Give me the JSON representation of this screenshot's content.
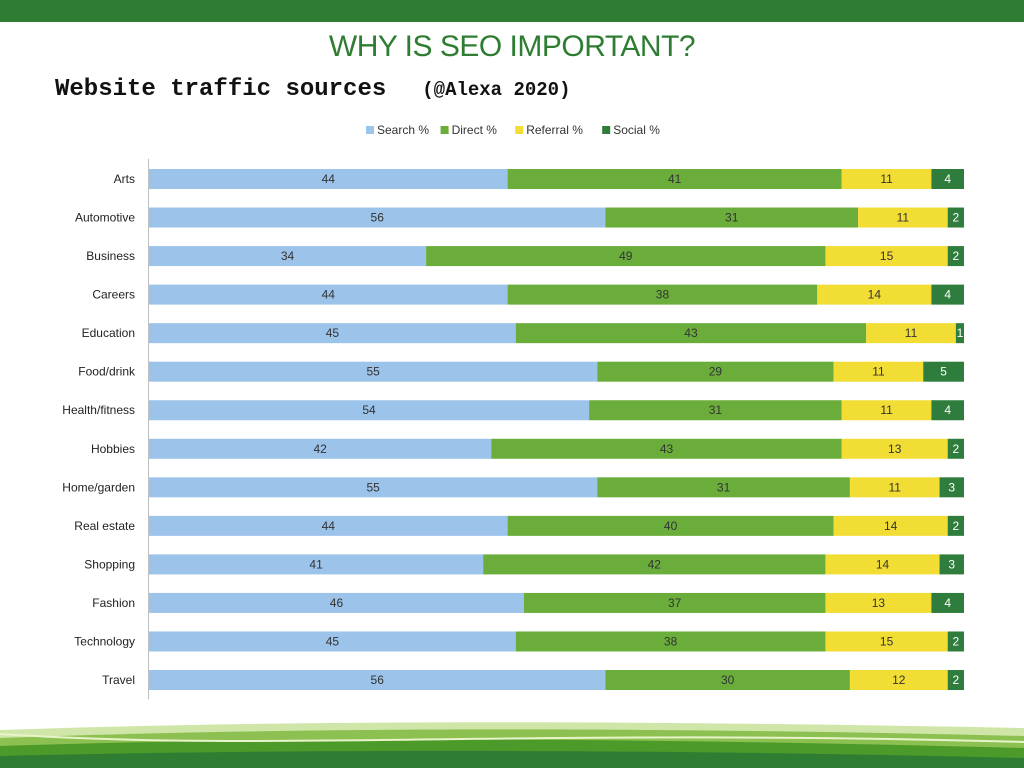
{
  "slide": {
    "title": "WHY IS SEO IMPORTANT?",
    "subtitle": "Website traffic sources",
    "source_note": "(@Alexa 2020)"
  },
  "colors": {
    "band": "#2e7d32",
    "title": "#2e7d32",
    "search": "#9cc3ea",
    "direct": "#6aad3a",
    "referral": "#f2dd35",
    "social": "#2f7d3c"
  },
  "chart_data": {
    "type": "bar",
    "orientation": "horizontal",
    "stacked": true,
    "legend_position": "top",
    "grid": false,
    "xlim": [
      0,
      100
    ],
    "categories": [
      "Arts",
      "Automotive",
      "Business",
      "Careers",
      "Education",
      "Food/drink",
      "Health/fitness",
      "Hobbies",
      "Home/garden",
      "Real estate",
      "Shopping",
      "Fashion",
      "Technology",
      "Travel"
    ],
    "series": [
      {
        "name": "Search %",
        "values": [
          44,
          56,
          34,
          44,
          45,
          55,
          54,
          42,
          55,
          44,
          41,
          46,
          45,
          56
        ]
      },
      {
        "name": "Direct %",
        "values": [
          41,
          31,
          49,
          38,
          43,
          29,
          31,
          43,
          31,
          40,
          42,
          37,
          38,
          30
        ]
      },
      {
        "name": "Referral %",
        "values": [
          11,
          11,
          15,
          14,
          11,
          11,
          11,
          13,
          11,
          14,
          14,
          13,
          15,
          12
        ]
      },
      {
        "name": "Social %",
        "values": [
          4,
          2,
          2,
          4,
          1,
          5,
          4,
          2,
          3,
          2,
          3,
          4,
          2,
          2
        ]
      }
    ]
  }
}
